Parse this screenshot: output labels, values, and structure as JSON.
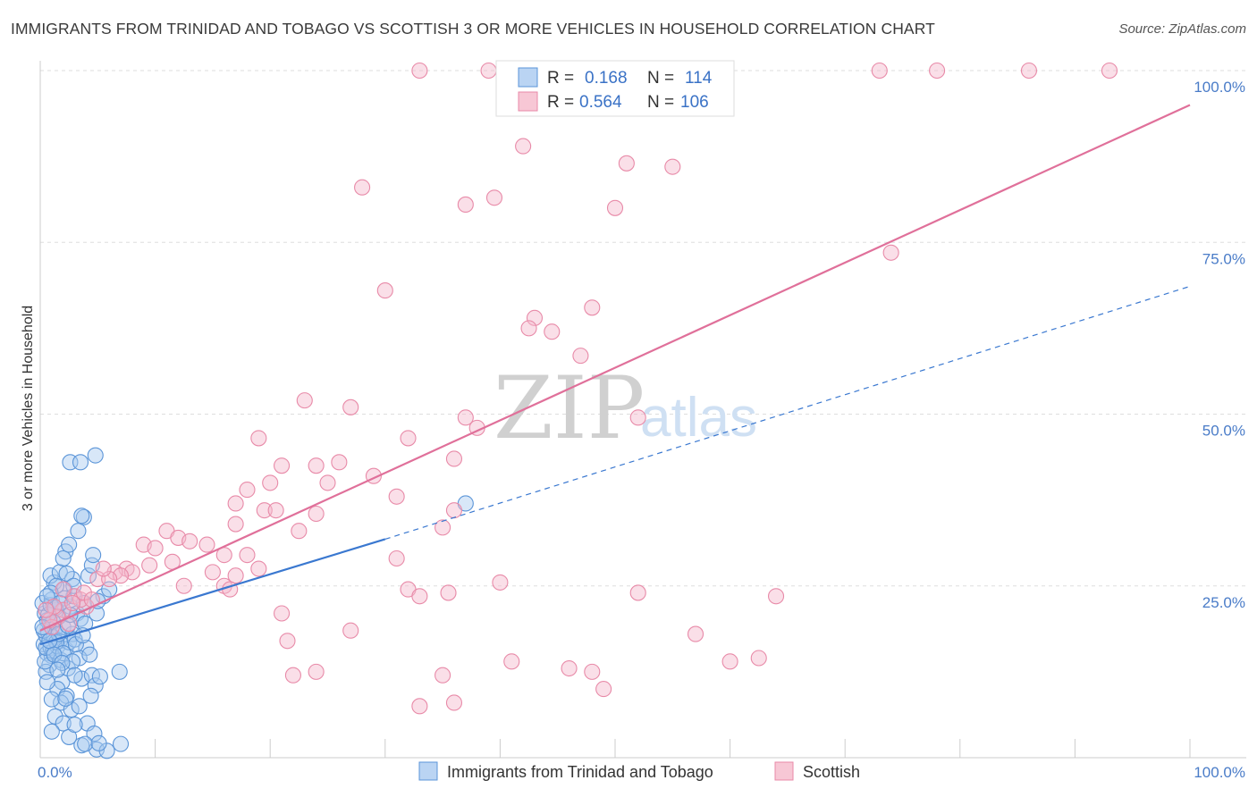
{
  "title": "IMMIGRANTS FROM TRINIDAD AND TOBAGO VS SCOTTISH 3 OR MORE VEHICLES IN HOUSEHOLD CORRELATION CHART",
  "source": "Source: ZipAtlas.com",
  "watermark": {
    "zip": "ZIP",
    "atlas": "atlas"
  },
  "legend": {
    "rows": [
      {
        "r_label": "R =",
        "r_value": "0.168",
        "n_label": "N =",
        "n_value": "114"
      },
      {
        "r_label": "R =",
        "r_value": "0.564",
        "n_label": "N =",
        "n_value": "106"
      }
    ]
  },
  "bottom_legend": [
    "Immigrants from Trinidad and Tobago",
    "Scottish"
  ],
  "colors": {
    "blue_fill": "#a9c9f0",
    "blue_stroke": "#5b95d8",
    "blue_line": "#3a78d0",
    "pink_fill": "#f5b9cb",
    "pink_stroke": "#e88aa8",
    "pink_line": "#e0709a",
    "grid": "#dddddd",
    "tick_text": "#4a7cc8"
  },
  "chart_data": {
    "type": "scatter",
    "title": "IMMIGRANTS FROM TRINIDAD AND TOBAGO VS SCOTTISH 3 OR MORE VEHICLES IN HOUSEHOLD CORRELATION CHART",
    "xlabel": "",
    "ylabel": "3 or more Vehicles in Household",
    "xlim": [
      0,
      100
    ],
    "ylim": [
      0,
      100
    ],
    "x_tick_labels": [
      "0.0%",
      "100.0%"
    ],
    "y_ticks": [
      25,
      50,
      75,
      100
    ],
    "y_tick_labels": [
      "25.0%",
      "50.0%",
      "75.0%",
      "100.0%"
    ],
    "grid": true,
    "legend_position": "top-center",
    "series": [
      {
        "name": "Immigrants from Trinidad and Tobago",
        "color": "#5b95d8",
        "R": 0.168,
        "N": 114,
        "trend": {
          "x": [
            0,
            30
          ],
          "y": [
            16.5,
            31.8
          ]
        },
        "trend_extension": {
          "x": [
            30,
            100
          ],
          "y": [
            31.8,
            68.6
          ]
        },
        "points": [
          [
            0.3,
            16.5
          ],
          [
            0.5,
            17.8
          ],
          [
            0.6,
            15.2
          ],
          [
            0.8,
            19.5
          ],
          [
            0.4,
            21.0
          ],
          [
            0.7,
            18.2
          ],
          [
            0.9,
            16.0
          ],
          [
            1.0,
            14.8
          ],
          [
            1.2,
            17.5
          ],
          [
            0.2,
            22.5
          ],
          [
            0.6,
            20.0
          ],
          [
            1.1,
            15.5
          ],
          [
            1.3,
            18.8
          ],
          [
            0.8,
            13.5
          ],
          [
            1.5,
            16.2
          ],
          [
            1.7,
            17.0
          ],
          [
            2.0,
            19.0
          ],
          [
            1.4,
            21.5
          ],
          [
            1.0,
            23.0
          ],
          [
            0.5,
            12.5
          ],
          [
            1.8,
            14.2
          ],
          [
            2.2,
            15.8
          ],
          [
            2.5,
            16.8
          ],
          [
            1.6,
            20.5
          ],
          [
            2.8,
            18.0
          ],
          [
            3.0,
            17.2
          ],
          [
            2.4,
            13.0
          ],
          [
            1.9,
            11.0
          ],
          [
            2.6,
            22.0
          ],
          [
            3.2,
            21.0
          ],
          [
            3.5,
            20.2
          ],
          [
            2.1,
            24.5
          ],
          [
            1.2,
            25.5
          ],
          [
            0.9,
            26.5
          ],
          [
            1.7,
            27.0
          ],
          [
            2.9,
            23.5
          ],
          [
            3.8,
            22.5
          ],
          [
            4.0,
            16.0
          ],
          [
            3.4,
            14.5
          ],
          [
            4.3,
            15.0
          ],
          [
            1.5,
            10.0
          ],
          [
            2.3,
            9.0
          ],
          [
            1.8,
            8.0
          ],
          [
            2.7,
            7.0
          ],
          [
            1.3,
            6.0
          ],
          [
            2.0,
            5.0
          ],
          [
            3.6,
            11.5
          ],
          [
            4.5,
            12.0
          ],
          [
            4.8,
            10.5
          ],
          [
            5.2,
            11.8
          ],
          [
            0.6,
            11.0
          ],
          [
            1.0,
            8.5
          ],
          [
            2.2,
            30.0
          ],
          [
            2.0,
            29.0
          ],
          [
            2.5,
            31.0
          ],
          [
            3.3,
            33.0
          ],
          [
            3.8,
            35.0
          ],
          [
            3.6,
            35.2
          ],
          [
            2.6,
            43.0
          ],
          [
            3.5,
            43.0
          ],
          [
            4.8,
            44.0
          ],
          [
            4.2,
            26.5
          ],
          [
            4.5,
            28.0
          ],
          [
            4.6,
            29.5
          ],
          [
            5.5,
            23.5
          ],
          [
            6.0,
            24.5
          ],
          [
            4.9,
            21.0
          ],
          [
            3.9,
            19.5
          ],
          [
            5.0,
            22.8
          ],
          [
            1.1,
            19.8
          ],
          [
            0.4,
            14.0
          ],
          [
            0.7,
            20.8
          ],
          [
            1.4,
            16.8
          ],
          [
            2.0,
            15.2
          ],
          [
            2.8,
            14.0
          ],
          [
            3.0,
            12.0
          ],
          [
            0.3,
            18.5
          ],
          [
            0.9,
            22.2
          ],
          [
            1.6,
            18.0
          ],
          [
            2.4,
            19.2
          ],
          [
            3.1,
            16.5
          ],
          [
            0.5,
            16.0
          ],
          [
            0.8,
            17.0
          ],
          [
            1.2,
            15.0
          ],
          [
            1.9,
            13.8
          ],
          [
            2.6,
            20.8
          ],
          [
            3.7,
            17.8
          ],
          [
            0.2,
            19.0
          ],
          [
            1.3,
            21.8
          ],
          [
            2.1,
            23.2
          ],
          [
            4.1,
            5.0
          ],
          [
            4.7,
            3.5
          ],
          [
            3.6,
            1.8
          ],
          [
            4.9,
            1.2
          ],
          [
            5.8,
            1.0
          ],
          [
            7.0,
            2.0
          ],
          [
            2.5,
            3.0
          ],
          [
            1.0,
            3.8
          ],
          [
            3.9,
            2.0
          ],
          [
            3.4,
            7.5
          ],
          [
            6.9,
            12.5
          ],
          [
            4.4,
            9.0
          ],
          [
            2.2,
            8.6
          ],
          [
            5.1,
            2.1
          ],
          [
            3.0,
            4.8
          ],
          [
            1.5,
            12.8
          ],
          [
            2.8,
            26.0
          ],
          [
            2.3,
            26.8
          ],
          [
            1.4,
            25.0
          ],
          [
            0.9,
            24.0
          ],
          [
            37.0,
            37.0
          ],
          [
            1.7,
            22.5
          ],
          [
            0.6,
            23.5
          ],
          [
            2.9,
            25.0
          ]
        ]
      },
      {
        "name": "Scottish",
        "color": "#e88aa8",
        "R": 0.564,
        "N": 106,
        "trend": {
          "x": [
            0,
            100
          ],
          "y": [
            18.5,
            95.0
          ]
        },
        "points": [
          [
            33.0,
            100.0
          ],
          [
            39.0,
            100.0
          ],
          [
            44.0,
            100.0
          ],
          [
            45.0,
            100.0
          ],
          [
            56.0,
            100.0
          ],
          [
            73.0,
            100.0
          ],
          [
            78.0,
            100.0
          ],
          [
            86.0,
            100.0
          ],
          [
            93.0,
            100.0
          ],
          [
            42.0,
            89.0
          ],
          [
            51.0,
            86.5
          ],
          [
            55.0,
            86.0
          ],
          [
            28.0,
            83.0
          ],
          [
            39.5,
            81.5
          ],
          [
            37.0,
            80.5
          ],
          [
            50.0,
            80.0
          ],
          [
            74.0,
            73.5
          ],
          [
            30.0,
            68.0
          ],
          [
            48.0,
            65.5
          ],
          [
            43.0,
            64.0
          ],
          [
            42.5,
            62.5
          ],
          [
            44.5,
            62.0
          ],
          [
            47.0,
            58.5
          ],
          [
            23.0,
            52.0
          ],
          [
            27.0,
            51.0
          ],
          [
            37.0,
            49.5
          ],
          [
            52.0,
            49.5
          ],
          [
            38.0,
            48.0
          ],
          [
            32.0,
            46.5
          ],
          [
            19.0,
            46.5
          ],
          [
            36.0,
            43.5
          ],
          [
            21.0,
            42.5
          ],
          [
            24.0,
            42.5
          ],
          [
            26.0,
            43.0
          ],
          [
            29.0,
            41.0
          ],
          [
            20.0,
            40.0
          ],
          [
            25.0,
            40.0
          ],
          [
            18.0,
            39.0
          ],
          [
            31.0,
            38.0
          ],
          [
            17.0,
            37.0
          ],
          [
            19.5,
            36.0
          ],
          [
            24.0,
            35.5
          ],
          [
            20.5,
            36.0
          ],
          [
            36.0,
            36.0
          ],
          [
            17.0,
            34.0
          ],
          [
            22.5,
            33.0
          ],
          [
            35.0,
            33.5
          ],
          [
            11.0,
            33.0
          ],
          [
            12.0,
            32.0
          ],
          [
            9.0,
            31.0
          ],
          [
            13.0,
            31.5
          ],
          [
            14.5,
            31.0
          ],
          [
            10.0,
            30.5
          ],
          [
            16.0,
            29.5
          ],
          [
            31.0,
            29.0
          ],
          [
            18.0,
            29.5
          ],
          [
            11.5,
            28.5
          ],
          [
            9.5,
            28.0
          ],
          [
            7.5,
            27.5
          ],
          [
            8.0,
            27.0
          ],
          [
            15.0,
            27.0
          ],
          [
            6.5,
            27.0
          ],
          [
            5.0,
            26.0
          ],
          [
            7.0,
            26.5
          ],
          [
            17.0,
            26.5
          ],
          [
            19.0,
            27.5
          ],
          [
            12.5,
            25.0
          ],
          [
            16.0,
            25.0
          ],
          [
            16.5,
            24.5
          ],
          [
            32.0,
            24.5
          ],
          [
            33.0,
            23.5
          ],
          [
            35.5,
            24.0
          ],
          [
            40.0,
            25.5
          ],
          [
            52.0,
            24.0
          ],
          [
            64.0,
            23.5
          ],
          [
            3.0,
            23.5
          ],
          [
            4.0,
            22.0
          ],
          [
            2.0,
            21.5
          ],
          [
            1.5,
            20.5
          ],
          [
            1.0,
            19.0
          ],
          [
            2.5,
            19.5
          ],
          [
            1.2,
            22.0
          ],
          [
            0.8,
            20.0
          ],
          [
            0.5,
            21.5
          ],
          [
            3.5,
            23.0
          ],
          [
            2.8,
            22.5
          ],
          [
            3.8,
            24.0
          ],
          [
            4.5,
            23.0
          ],
          [
            6.0,
            26.0
          ],
          [
            5.5,
            27.5
          ],
          [
            21.0,
            21.0
          ],
          [
            27.0,
            18.5
          ],
          [
            57.0,
            18.0
          ],
          [
            21.5,
            17.0
          ],
          [
            41.0,
            14.0
          ],
          [
            46.0,
            13.0
          ],
          [
            22.0,
            12.0
          ],
          [
            24.0,
            12.5
          ],
          [
            35.0,
            12.0
          ],
          [
            48.0,
            12.5
          ],
          [
            49.0,
            10.0
          ],
          [
            36.0,
            8.0
          ],
          [
            33.0,
            7.5
          ],
          [
            60.0,
            14.0
          ],
          [
            62.5,
            14.5
          ],
          [
            2.0,
            24.5
          ]
        ]
      }
    ]
  }
}
